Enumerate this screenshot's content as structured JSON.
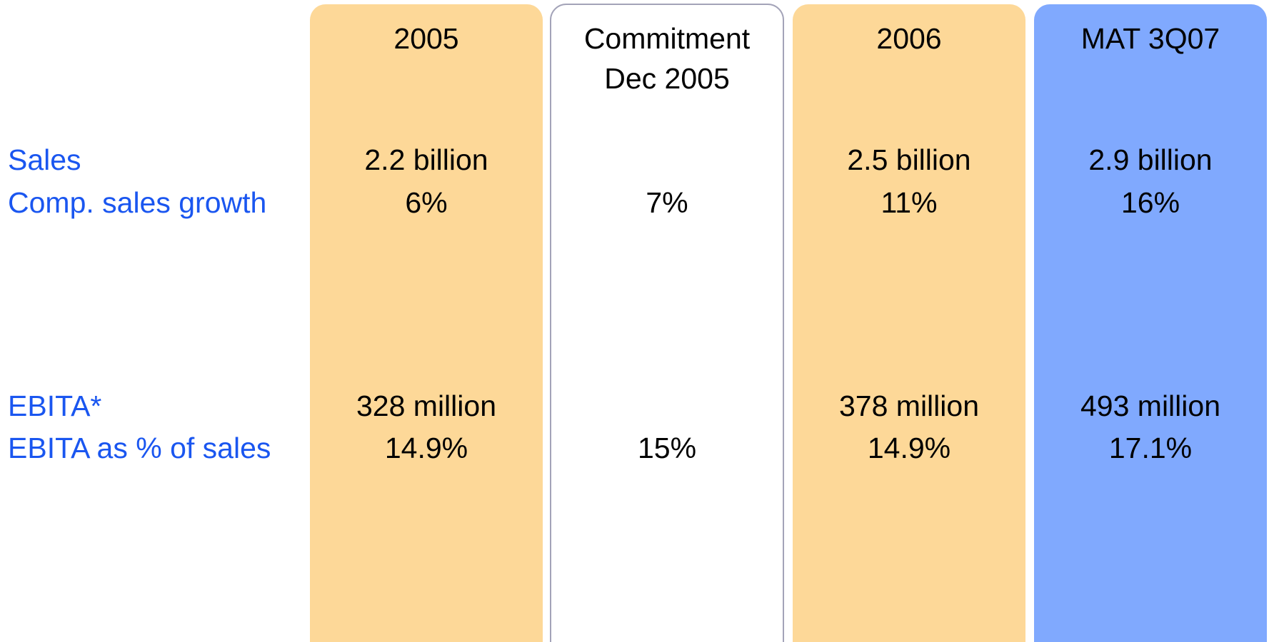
{
  "row_labels": [
    "Sales",
    "Comp. sales growth",
    "EBITA*",
    "EBITA as % of sales"
  ],
  "columns": [
    {
      "header": [
        "2005"
      ],
      "color": "#fdd898",
      "sales": "2.2 billion",
      "growth": "6%",
      "ebita": "328 million",
      "margin": "14.9%"
    },
    {
      "header": [
        "Commitment",
        "Dec 2005"
      ],
      "color": "#ffffff",
      "growth": "7%",
      "margin": "15%"
    },
    {
      "header": [
        "2006"
      ],
      "color": "#fdd898",
      "sales": "2.5 billion",
      "growth": "11%",
      "ebita": "378 million",
      "margin": "14.9%"
    },
    {
      "header": [
        "MAT 3Q07"
      ],
      "color": "#80a9fe",
      "sales": "2.9 billion",
      "growth": "16%",
      "ebita": "493 million",
      "margin": "17.1%"
    }
  ]
}
